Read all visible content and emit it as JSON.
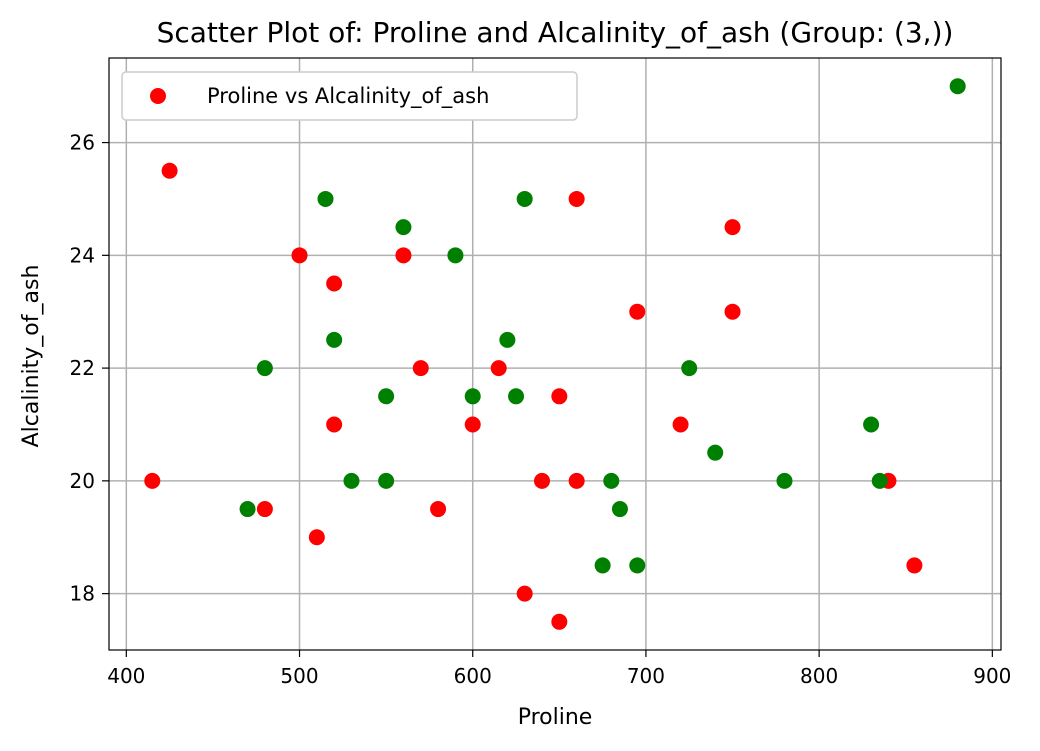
{
  "chart_data": {
    "type": "scatter",
    "title": "Scatter Plot of: Proline and Alcalinity_of_ash (Group: (3,))",
    "xlabel": "Proline",
    "ylabel": "Alcalinity_of_ash",
    "xlim": [
      390,
      905
    ],
    "ylim": [
      17,
      27.5
    ],
    "xticks": [
      400,
      500,
      600,
      700,
      800,
      900
    ],
    "yticks": [
      18,
      20,
      22,
      24,
      26
    ],
    "grid": true,
    "legend": {
      "position": "top-left",
      "entries": [
        {
          "label": "Proline vs Alcalinity_of_ash",
          "color": "#ff0000"
        }
      ]
    },
    "series": [
      {
        "name": "Proline vs Alcalinity_of_ash",
        "color": "#ff0000",
        "points": [
          [
            415,
            20
          ],
          [
            425,
            25.5
          ],
          [
            480,
            19.5
          ],
          [
            500,
            24
          ],
          [
            510,
            19
          ],
          [
            520,
            23.5
          ],
          [
            520,
            21
          ],
          [
            560,
            24
          ],
          [
            570,
            22
          ],
          [
            580,
            19.5
          ],
          [
            600,
            21
          ],
          [
            615,
            22
          ],
          [
            630,
            18
          ],
          [
            640,
            20
          ],
          [
            650,
            21.5
          ],
          [
            650,
            17.5
          ],
          [
            660,
            25
          ],
          [
            660,
            20
          ],
          [
            695,
            23
          ],
          [
            720,
            21
          ],
          [
            750,
            24.5
          ],
          [
            750,
            23
          ],
          [
            840,
            20
          ],
          [
            855,
            18.5
          ]
        ]
      },
      {
        "name": "",
        "color": "#008000",
        "points": [
          [
            470,
            19.5
          ],
          [
            480,
            22
          ],
          [
            515,
            25
          ],
          [
            520,
            22.5
          ],
          [
            530,
            20
          ],
          [
            550,
            21.5
          ],
          [
            550,
            20
          ],
          [
            560,
            24.5
          ],
          [
            590,
            24
          ],
          [
            600,
            21.5
          ],
          [
            620,
            22.5
          ],
          [
            625,
            21.5
          ],
          [
            630,
            25
          ],
          [
            675,
            18.5
          ],
          [
            680,
            20
          ],
          [
            685,
            19.5
          ],
          [
            695,
            18.5
          ],
          [
            725,
            22
          ],
          [
            740,
            20.5
          ],
          [
            780,
            20
          ],
          [
            830,
            21
          ],
          [
            835,
            20
          ],
          [
            880,
            27
          ]
        ]
      }
    ]
  }
}
